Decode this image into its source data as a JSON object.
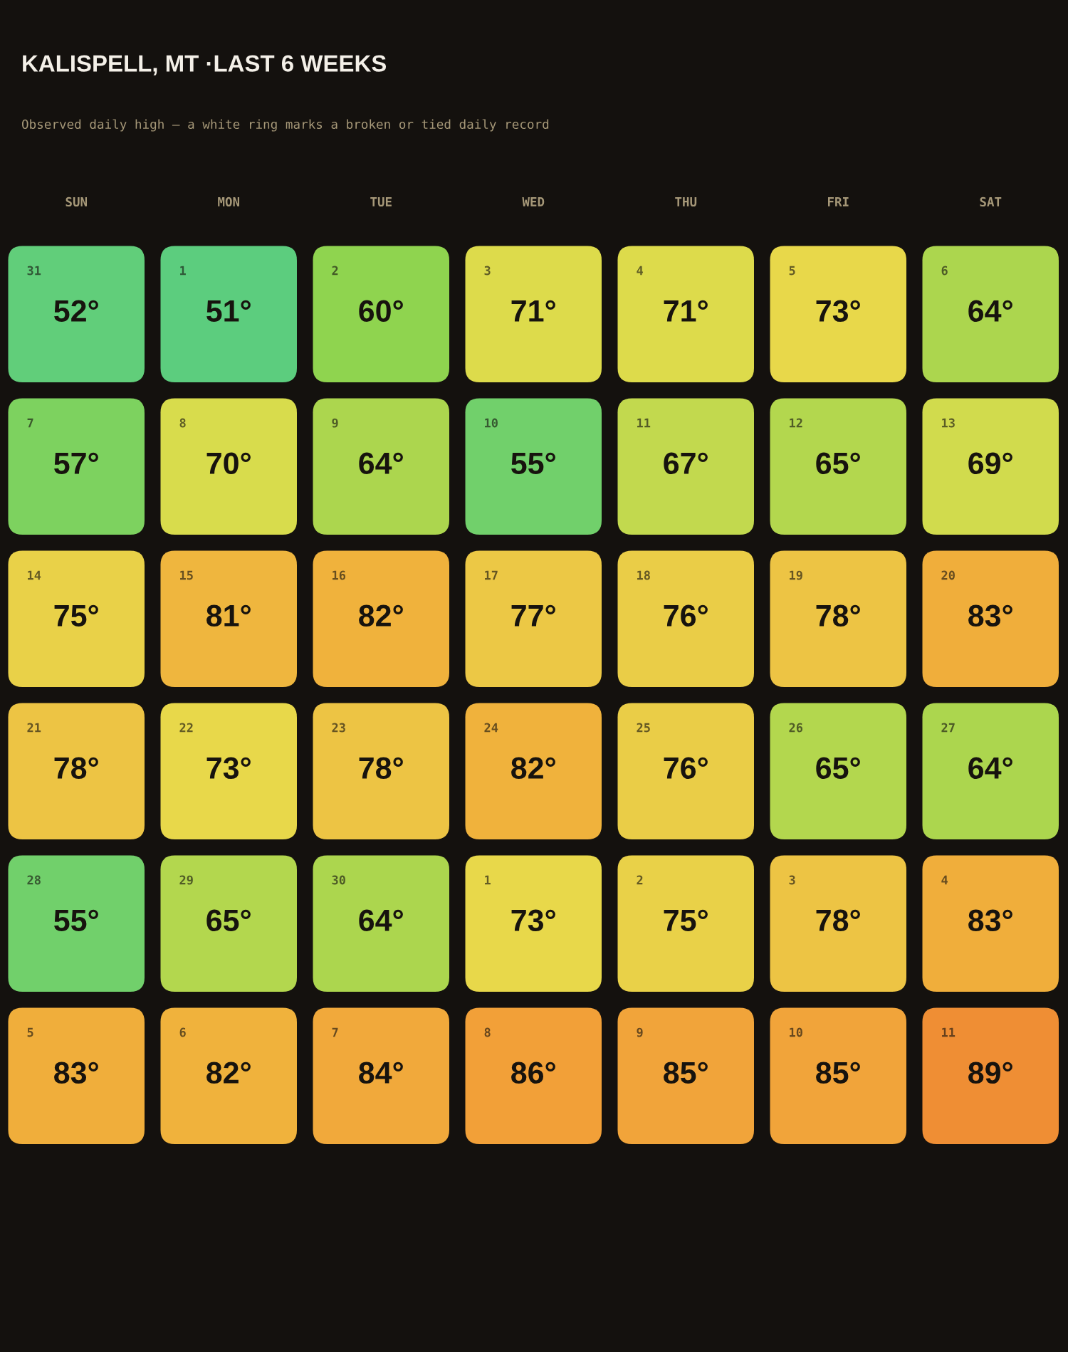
{
  "chart_data": {
    "type": "heatmap",
    "title": "KALISPELL, MT ·LAST 6 WEEKS",
    "subtitle": "Observed daily high — a white ring marks a broken or tied daily record",
    "categories": [
      "SUN",
      "MON",
      "TUE",
      "WED",
      "THU",
      "FRI",
      "SAT"
    ],
    "y_categories": [
      null,
      null,
      null,
      null,
      null,
      null
    ],
    "cells": [
      [
        52,
        51,
        60,
        71,
        71,
        73,
        64
      ],
      [
        57,
        70,
        64,
        55,
        67,
        65,
        69
      ],
      [
        75,
        81,
        82,
        77,
        76,
        78,
        83
      ],
      [
        78,
        73,
        78,
        82,
        76,
        65,
        64
      ],
      [
        55,
        65,
        64,
        73,
        75,
        78,
        83
      ],
      [
        83,
        82,
        84,
        86,
        85,
        85,
        89
      ]
    ],
    "cell_labels": [
      [
        "52°",
        "51°",
        "60°",
        "71°",
        "71°",
        "73°",
        "64°"
      ],
      [
        "57°",
        "70°",
        "64°",
        "55°",
        "67°",
        "65°",
        "69°"
      ],
      [
        "75°",
        "81°",
        "82°",
        "77°",
        "76°",
        "78°",
        "83°"
      ],
      [
        "78°",
        "73°",
        "78°",
        "82°",
        "76°",
        "65°",
        "64°"
      ],
      [
        "55°",
        "65°",
        "64°",
        "73°",
        "75°",
        "78°",
        "83°"
      ],
      [
        "83°",
        "82°",
        "84°",
        "86°",
        "85°",
        "85°",
        "89°"
      ]
    ],
    "annotations": [
      "31",
      "1",
      "2",
      "3",
      "4",
      "5",
      "6",
      "7",
      "8",
      "9",
      "10",
      "11",
      "12",
      "13",
      "14",
      "15",
      "16",
      "17",
      "18",
      "19",
      "20",
      "21",
      "22",
      "23",
      "24",
      "25",
      "26",
      "27",
      "28",
      "29",
      "30",
      "1",
      "2",
      "3",
      "4",
      "5",
      "6",
      "7",
      "8",
      "9",
      "10",
      "11"
    ]
  }
}
